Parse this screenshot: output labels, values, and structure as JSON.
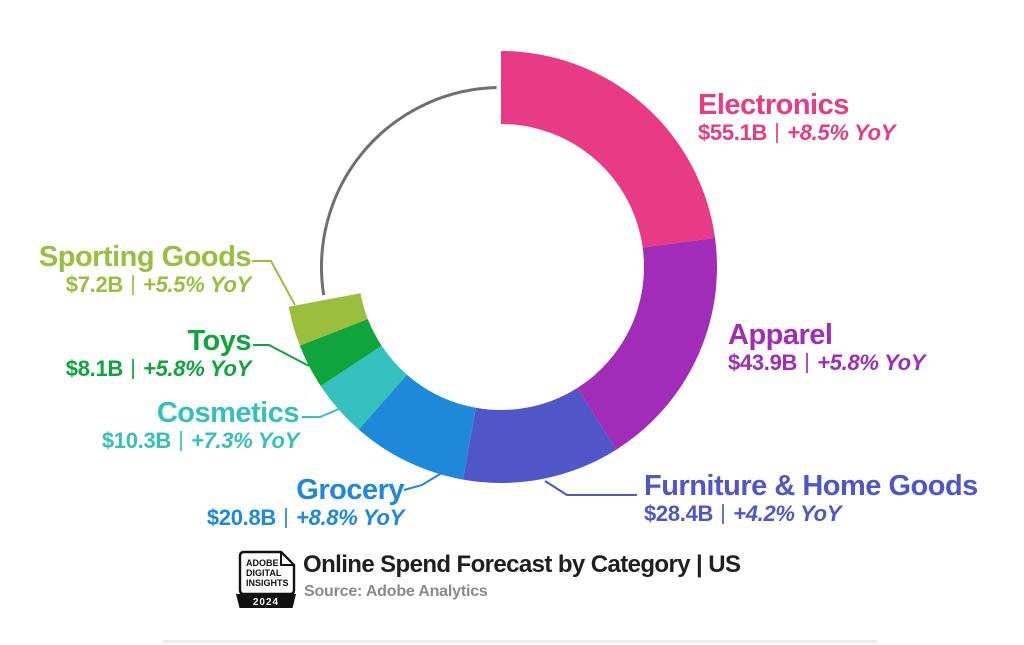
{
  "page": {
    "background": "#ffffff"
  },
  "chart_data": {
    "type": "donut",
    "title": "Online Spend Forecast by Category | US",
    "source": "Source: Adobe Analytics",
    "unit": "USD billions, online spend forecast with year-over-year growth",
    "categories": [
      "Electronics",
      "Apparel",
      "Furniture & Home Goods",
      "Grocery",
      "Cosmetics",
      "Toys",
      "Sporting Goods"
    ],
    "values": [
      55.1,
      43.9,
      28.4,
      20.8,
      10.3,
      8.1,
      7.2
    ],
    "value_labels": [
      "$55.1B",
      "$43.9B",
      "$28.4B",
      "$20.8B",
      "$10.3B",
      "$8.1B",
      "$7.2B"
    ],
    "yoy_pct": [
      8.5,
      5.8,
      4.2,
      8.8,
      7.3,
      5.8,
      5.5
    ],
    "yoy_labels": [
      "+8.5% YoY",
      "+5.8% YoY",
      "+4.2% YoY",
      "+8.8% YoY",
      "+7.3% YoY",
      "+5.8% YoY",
      "+5.5% YoY"
    ],
    "colors": [
      "#E83A85",
      "#A12CB8",
      "#5055C8",
      "#1E88DA",
      "#35C0BD",
      "#10A43C",
      "#9ABE3D"
    ],
    "remainder_arc_color": "#6F6F6F",
    "start_angle_deg": 0,
    "colored_span_deg": 259.4,
    "clockwise": true,
    "legend": "none",
    "label_style": "callout"
  },
  "footer": {
    "badge": {
      "line1": "ADOBE",
      "line2": "DIGITAL",
      "line3": "INSIGHTS",
      "year": "2024"
    }
  }
}
